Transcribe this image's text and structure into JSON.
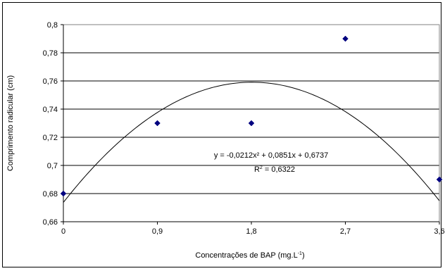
{
  "chart_data": {
    "type": "scatter",
    "xlabel": "Concentrações de BAP (mg.L",
    "xlabel_sup": "-1",
    "xlabel_end": ")",
    "ylabel": "Comprimento radicular (cm)",
    "xlim": [
      0,
      3.6
    ],
    "ylim": [
      0.66,
      0.8
    ],
    "x_ticks": [
      0,
      0.9,
      1.8,
      2.7,
      3.6
    ],
    "x_tick_labels": [
      "0",
      "0,9",
      "1,8",
      "2,7",
      "3,6"
    ],
    "y_ticks": [
      0.66,
      0.68,
      0.7,
      0.72,
      0.74,
      0.76,
      0.78,
      0.8
    ],
    "y_tick_labels": [
      "0,66",
      "0,68",
      "0,7",
      "0,72",
      "0,74",
      "0,76",
      "0,78",
      "0,8"
    ],
    "grid": "horizontal",
    "marker_color": "#000080",
    "series": [
      {
        "x": [
          0,
          0.9,
          1.8,
          2.7,
          3.6
        ],
        "y": [
          0.68,
          0.73,
          0.73,
          0.79,
          0.69
        ]
      }
    ],
    "trendline": {
      "type": "polynomial",
      "a": -0.0212,
      "b": 0.0851,
      "c": 0.6737,
      "x_per_unit": 0.9
    },
    "equation_text": "y = -0,0212x² + 0,0851x + 0,6737",
    "r2_label": "R",
    "r2_value": " = 0,6322"
  }
}
